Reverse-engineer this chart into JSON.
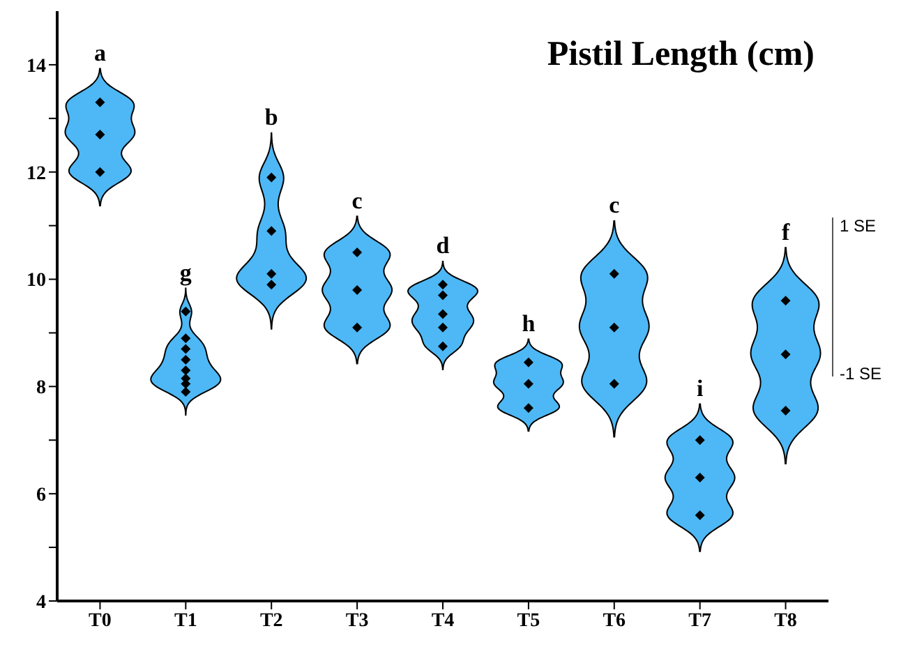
{
  "chart_data": {
    "type": "scatter",
    "title": "Pistil Length (cm)",
    "categories": [
      "T0",
      "T1",
      "T2",
      "T3",
      "T4",
      "T5",
      "T6",
      "T7",
      "T8"
    ],
    "series": [
      {
        "color": "#000000",
        "x": [
          "T0",
          "T0",
          "T0",
          "T1",
          "T1",
          "T1",
          "T1",
          "T1",
          "T1",
          "T1",
          "T1",
          "T2",
          "T2",
          "T2",
          "T2",
          "T3",
          "T3",
          "T3",
          "T4",
          "T4",
          "T4",
          "T4",
          "T4",
          "T5",
          "T5",
          "T5",
          "T6",
          "T6",
          "T6",
          "T7",
          "T7",
          "T7",
          "T8",
          "T8",
          "T8"
        ],
        "values": [
          13.3,
          12.7,
          12.0,
          9.4,
          8.9,
          8.7,
          8.5,
          8.3,
          8.15,
          8.05,
          7.9,
          11.9,
          10.9,
          10.1,
          9.9,
          10.5,
          9.8,
          9.1,
          9.9,
          9.7,
          9.35,
          9.1,
          8.75,
          8.45,
          8.05,
          7.6,
          10.1,
          9.1,
          8.05,
          7.0,
          6.3,
          5.6,
          9.6,
          8.6,
          7.55
        ]
      }
    ],
    "marker": "diamond",
    "ylim": [
      4,
      15
    ],
    "yticks": [
      4,
      {
        "value": 5,
        "label": null
      },
      6,
      {
        "value": 7,
        "label": null
      },
      8,
      {
        "value": 9,
        "label": null
      },
      10,
      {
        "value": 11,
        "label": null
      },
      12,
      {
        "value": 13,
        "label": null
      },
      14
    ],
    "annotations": [
      "a",
      "g",
      "b",
      "c",
      "d",
      "h",
      "c",
      "i",
      "f",
      "1 SE",
      "-1 SE"
    ]
  }
}
